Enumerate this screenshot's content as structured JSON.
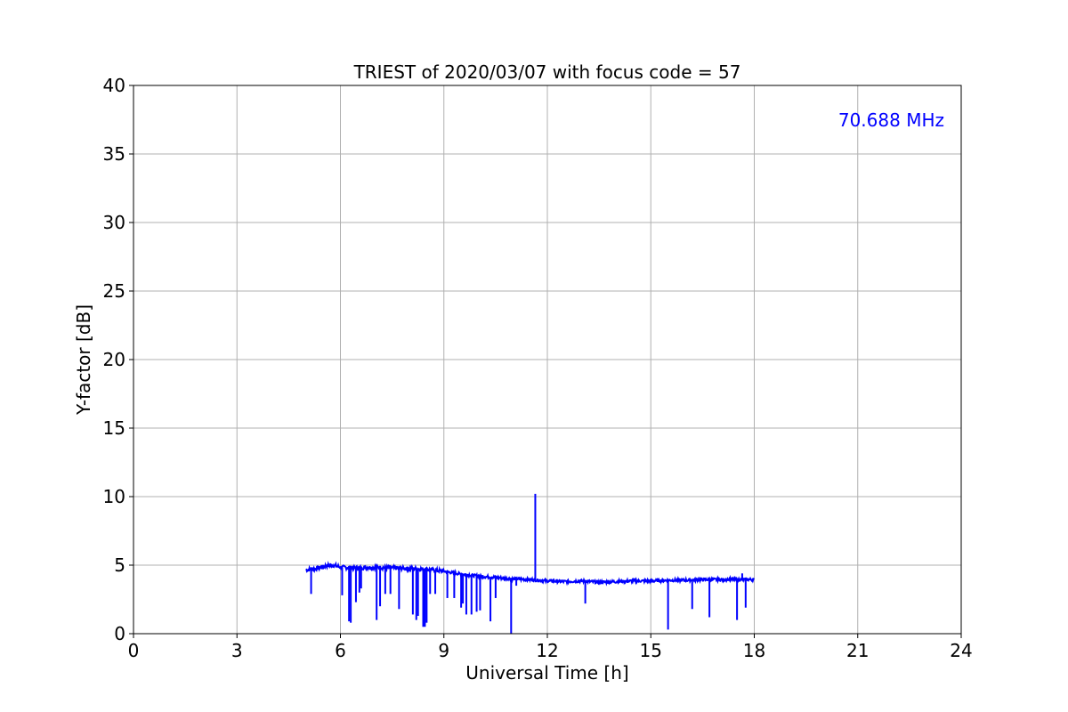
{
  "chart_data": {
    "type": "line",
    "title": "TRIEST of 2020/03/07 with focus code = 57",
    "xlabel": "Universal Time [h]",
    "ylabel": "Y-factor [dB]",
    "xlim": [
      0,
      24
    ],
    "ylim": [
      0,
      40
    ],
    "xticks": [
      0,
      3,
      6,
      9,
      12,
      15,
      18,
      21,
      24
    ],
    "yticks": [
      0,
      5,
      10,
      15,
      20,
      25,
      30,
      35,
      40
    ],
    "grid": true,
    "annotation": {
      "text": "70.688 MHz",
      "color": "#0000ff",
      "position": "top-right"
    },
    "series": [
      {
        "color": "#0000ff",
        "baseline": [
          [
            5.0,
            4.65
          ],
          [
            5.3,
            4.75
          ],
          [
            5.6,
            4.95
          ],
          [
            5.8,
            5.0
          ],
          [
            6.0,
            4.85
          ],
          [
            6.5,
            4.8
          ],
          [
            7.0,
            4.85
          ],
          [
            7.5,
            4.8
          ],
          [
            8.0,
            4.75
          ],
          [
            8.5,
            4.7
          ],
          [
            9.0,
            4.55
          ],
          [
            9.5,
            4.35
          ],
          [
            10.0,
            4.2
          ],
          [
            10.5,
            4.1
          ],
          [
            11.0,
            4.0
          ],
          [
            11.5,
            3.95
          ],
          [
            12.0,
            3.85
          ],
          [
            12.5,
            3.8
          ],
          [
            13.0,
            3.85
          ],
          [
            13.5,
            3.75
          ],
          [
            14.0,
            3.8
          ],
          [
            14.5,
            3.85
          ],
          [
            15.0,
            3.85
          ],
          [
            15.5,
            3.9
          ],
          [
            16.0,
            3.9
          ],
          [
            16.5,
            3.95
          ],
          [
            17.0,
            3.95
          ],
          [
            17.5,
            3.95
          ],
          [
            18.0,
            3.95
          ]
        ],
        "spikes": [
          [
            5.15,
            2.9
          ],
          [
            6.05,
            2.8
          ],
          [
            6.25,
            0.9
          ],
          [
            6.3,
            0.8
          ],
          [
            6.45,
            2.3
          ],
          [
            6.55,
            3.0
          ],
          [
            6.6,
            3.3
          ],
          [
            7.05,
            1.0
          ],
          [
            7.15,
            2.0
          ],
          [
            7.3,
            2.9
          ],
          [
            7.45,
            2.9
          ],
          [
            7.7,
            1.8
          ],
          [
            8.1,
            1.4
          ],
          [
            8.2,
            1.0
          ],
          [
            8.25,
            1.3
          ],
          [
            8.4,
            0.5
          ],
          [
            8.45,
            0.5
          ],
          [
            8.5,
            0.8
          ],
          [
            8.6,
            2.9
          ],
          [
            8.75,
            2.9
          ],
          [
            9.1,
            2.6
          ],
          [
            9.3,
            2.6
          ],
          [
            9.5,
            1.9
          ],
          [
            9.55,
            2.2
          ],
          [
            9.65,
            1.4
          ],
          [
            9.8,
            1.4
          ],
          [
            9.95,
            1.6
          ],
          [
            10.05,
            1.7
          ],
          [
            10.35,
            0.9
          ],
          [
            10.5,
            2.6
          ],
          [
            10.95,
            0.0
          ],
          [
            11.1,
            3.5
          ],
          [
            11.65,
            10.2
          ],
          [
            13.1,
            2.2
          ],
          [
            15.5,
            0.3
          ],
          [
            16.2,
            1.8
          ],
          [
            16.7,
            1.2
          ],
          [
            17.5,
            1.0
          ],
          [
            17.65,
            4.4
          ],
          [
            17.75,
            1.9
          ]
        ]
      }
    ]
  }
}
